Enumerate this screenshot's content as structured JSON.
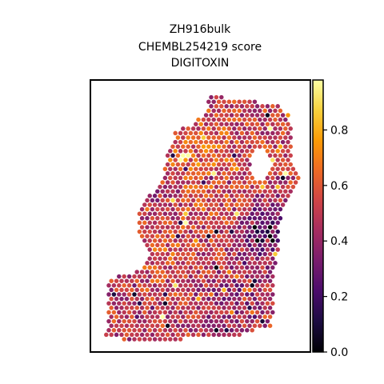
{
  "chart_data": {
    "type": "scatter",
    "subtype": "spatial hexbin spots",
    "title": [
      "ZH916bulk",
      "CHEMBL254219 score",
      "DIGITOXIN"
    ],
    "xlabel": "",
    "ylabel": "",
    "axes_ticks": "none",
    "grid": false,
    "colormap": "inferno",
    "colorbar": {
      "range": [
        0.0,
        0.98
      ],
      "ticks": [
        0.0,
        0.2,
        0.4,
        0.6,
        0.8
      ],
      "tick_labels": [
        "0.0",
        "0.2",
        "0.4",
        "0.6",
        "0.8"
      ]
    },
    "value_distribution": {
      "typical_range": [
        0.35,
        0.65
      ],
      "high_region": "upper-center",
      "low_region": "right-center"
    }
  },
  "colors": {
    "inferno": [
      "#000004",
      "#1b0c41",
      "#4a0c6b",
      "#781c6d",
      "#a52c60",
      "#cf4446",
      "#ed6925",
      "#fb9b06",
      "#f7d13d",
      "#fcffa4"
    ]
  }
}
